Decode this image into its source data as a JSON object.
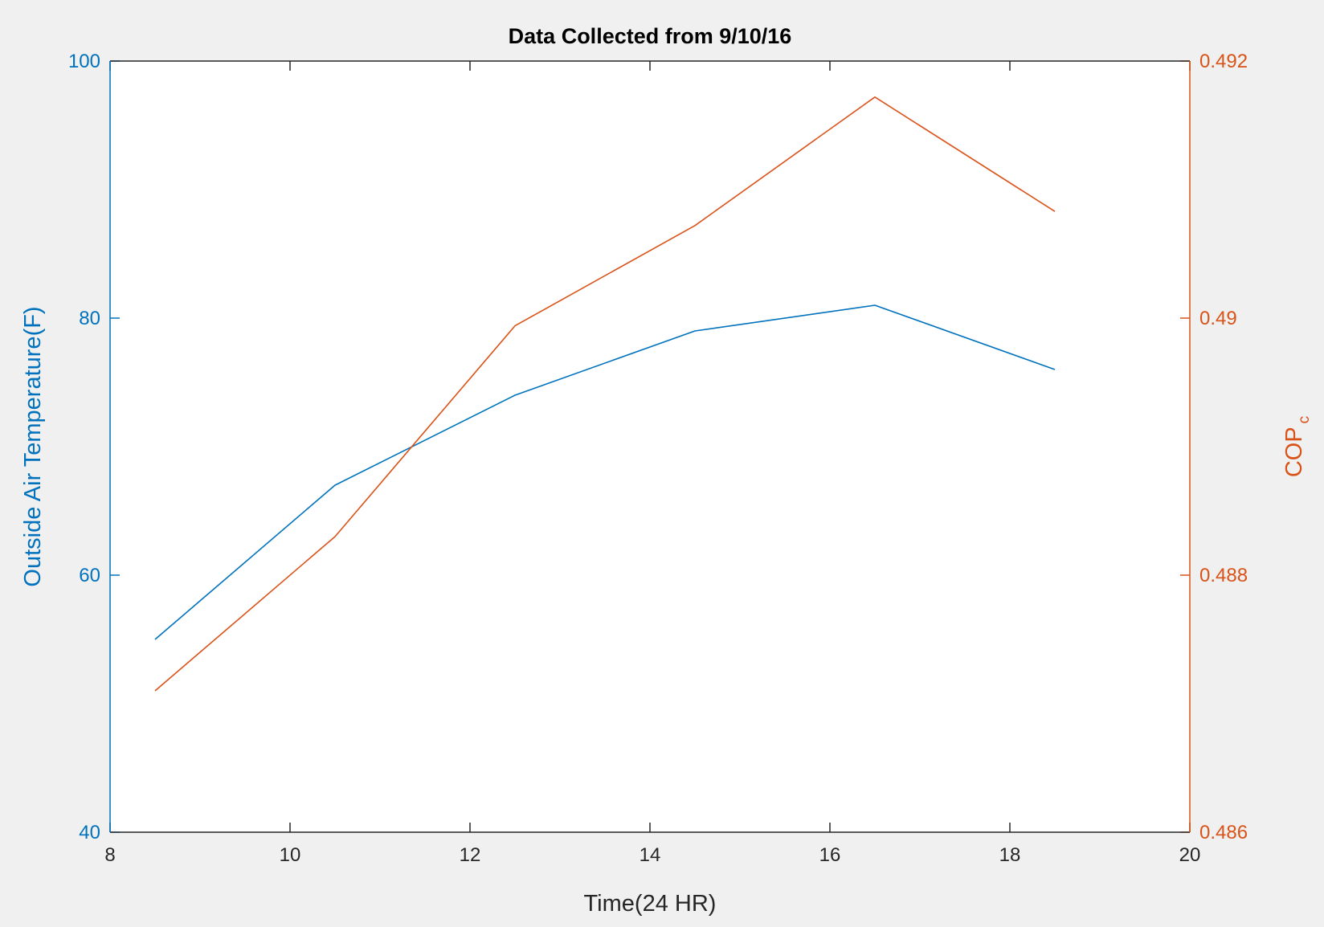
{
  "chart_data": {
    "type": "line",
    "title": "Data Collected from 9/10/16",
    "xlabel": "Time(24 HR)",
    "xlim": [
      8,
      20
    ],
    "xticks": [
      8,
      10,
      12,
      14,
      16,
      18,
      20
    ],
    "xtick_labels": [
      "8",
      "10",
      "12",
      "14",
      "16",
      "18",
      "20"
    ],
    "left_axis": {
      "label": "Outside Air Temperature(F)",
      "color": "#0072bd",
      "ylim": [
        40,
        100
      ],
      "ticks": [
        40,
        60,
        80,
        100
      ],
      "tick_labels": [
        "40",
        "60",
        "80",
        "100"
      ]
    },
    "right_axis": {
      "label_main": "COP",
      "label_sub": "c",
      "color": "#d95319",
      "ylim": [
        0.486,
        0.492
      ],
      "ticks": [
        0.486,
        0.488,
        0.49,
        0.492
      ],
      "tick_labels": [
        "0.486",
        "0.488",
        "0.49",
        "0.492"
      ]
    },
    "series": [
      {
        "axis": "left",
        "color": "#0072bd",
        "x": [
          8.5,
          10.5,
          12.5,
          14.5,
          16.5,
          18.5
        ],
        "y": [
          55,
          67,
          74,
          79,
          81,
          76
        ]
      },
      {
        "axis": "right",
        "color": "#d95319",
        "x": [
          8.5,
          10.5,
          12.5,
          14.5,
          16.5,
          18.5
        ],
        "y": [
          0.4871,
          0.4883,
          0.48994,
          0.49072,
          0.49172,
          0.49083
        ]
      }
    ],
    "grid": false
  }
}
